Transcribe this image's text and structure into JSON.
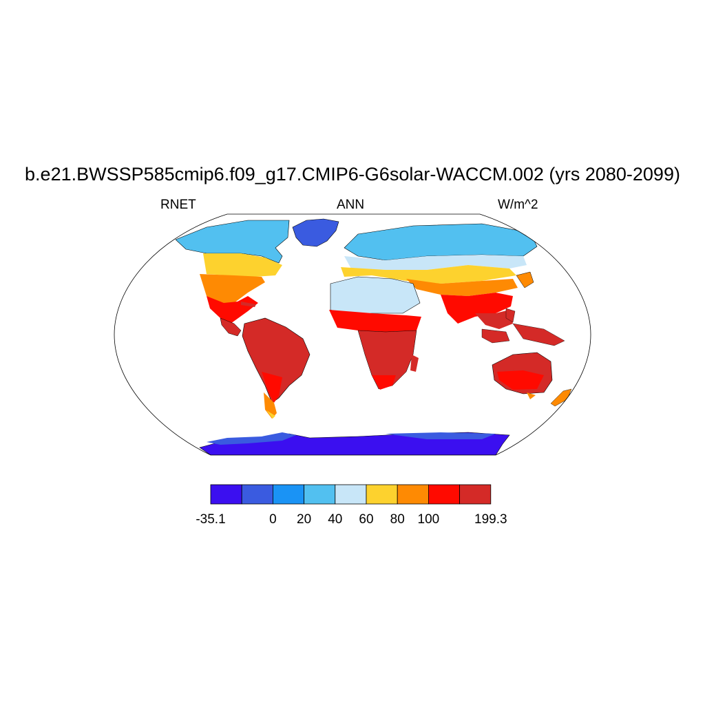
{
  "title": "b.e21.BWSSP585cmip6.f09_g17.CMIP6-G6solar-WACCM.002 (yrs 2080-2099)",
  "left_label": "RNET",
  "center_label": "ANN",
  "right_label": "W/m^2",
  "projection": "Robinson",
  "colorbar": {
    "colors": [
      "#3b0ff0",
      "#3a5be0",
      "#1a93f5",
      "#52c0f0",
      "#c8e6f8",
      "#fdd22e",
      "#fe8a03",
      "#ff0a00",
      "#d42a27"
    ],
    "labels": [
      "-35.1",
      "0",
      "20",
      "40",
      "60",
      "80",
      "100",
      "199.3"
    ],
    "levels": [
      -35.1,
      -15,
      0,
      20,
      40,
      60,
      80,
      100,
      150,
      199.3
    ]
  }
}
